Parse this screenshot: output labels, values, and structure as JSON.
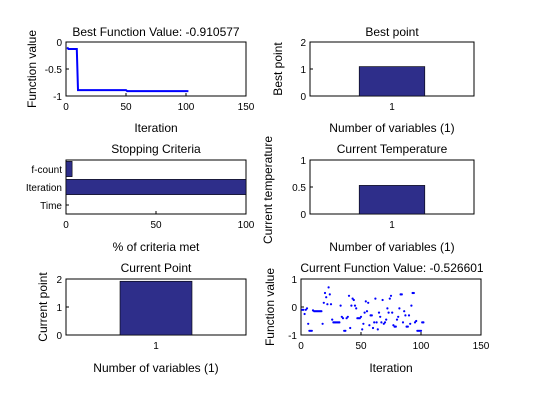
{
  "figure": {
    "background": "#ffffff",
    "bar_color": "#2e2e8a",
    "line_color": "#0000ff"
  },
  "chart_data": [
    {
      "id": "best-function-value",
      "type": "line",
      "title": "Best Function Value: -0.910577",
      "xlabel": "Iteration",
      "ylabel": "Function value",
      "xlim": [
        0,
        150
      ],
      "ylim": [
        -1,
        0
      ],
      "xticks": [
        "0",
        "50",
        "100",
        "150"
      ],
      "yticks": [
        "-1",
        "-0.5",
        "0"
      ],
      "series": [
        {
          "x": [
            1,
            2,
            3,
            4,
            5,
            6,
            7,
            8,
            9,
            10,
            11,
            12,
            13,
            14,
            15,
            16,
            17,
            18,
            19,
            20,
            21,
            22,
            23,
            24,
            25,
            26,
            27,
            28,
            29,
            30,
            31,
            32,
            33,
            34,
            35,
            36,
            37,
            38,
            39,
            40,
            41,
            42,
            43,
            44,
            45,
            46,
            47,
            48,
            49,
            50,
            51,
            52,
            53,
            54,
            55,
            56,
            57,
            58,
            59,
            60,
            61,
            62,
            63,
            64,
            65,
            66,
            67,
            68,
            69,
            70,
            71,
            72,
            73,
            74,
            75,
            76,
            77,
            78,
            79,
            80,
            81,
            82,
            83,
            84,
            85,
            86,
            87,
            88,
            89,
            90,
            91,
            92,
            93,
            94,
            95,
            96,
            97,
            98,
            99,
            100,
            101,
            102
          ],
          "y": [
            -0.1,
            -0.13,
            -0.13,
            -0.13,
            -0.13,
            -0.13,
            -0.13,
            -0.13,
            -0.13,
            -0.89,
            -0.89,
            -0.89,
            -0.89,
            -0.89,
            -0.89,
            -0.89,
            -0.89,
            -0.89,
            -0.89,
            -0.89,
            -0.89,
            -0.89,
            -0.89,
            -0.89,
            -0.89,
            -0.89,
            -0.89,
            -0.89,
            -0.89,
            -0.89,
            -0.89,
            -0.89,
            -0.89,
            -0.89,
            -0.89,
            -0.89,
            -0.89,
            -0.89,
            -0.89,
            -0.89,
            -0.89,
            -0.89,
            -0.89,
            -0.89,
            -0.89,
            -0.89,
            -0.89,
            -0.89,
            -0.89,
            -0.89,
            -0.91,
            -0.91,
            -0.91,
            -0.91,
            -0.91,
            -0.91,
            -0.91,
            -0.91,
            -0.91,
            -0.91,
            -0.91,
            -0.91,
            -0.91,
            -0.91,
            -0.91,
            -0.91,
            -0.91,
            -0.91,
            -0.91,
            -0.91,
            -0.91,
            -0.91,
            -0.91,
            -0.91,
            -0.91,
            -0.91,
            -0.91,
            -0.91,
            -0.91,
            -0.91,
            -0.91,
            -0.91,
            -0.91,
            -0.91,
            -0.91,
            -0.91,
            -0.91,
            -0.91,
            -0.91,
            -0.91,
            -0.91,
            -0.91,
            -0.91,
            -0.91,
            -0.91,
            -0.91,
            -0.91,
            -0.91,
            -0.91,
            -0.91,
            -0.91,
            -0.91
          ]
        }
      ]
    },
    {
      "id": "best-point",
      "type": "bar",
      "title": "Best point",
      "xlabel": "Number of variables (1)",
      "ylabel": "Best point",
      "xlim": [
        0,
        2
      ],
      "ylim": [
        0,
        2
      ],
      "categories": [
        "1"
      ],
      "xticks": [
        "1"
      ],
      "yticks": [
        "0",
        "1",
        "2"
      ],
      "values": [
        1.09
      ]
    },
    {
      "id": "stopping-criteria",
      "type": "bar",
      "orientation": "horizontal",
      "title": "Stopping Criteria",
      "xlabel": "% of criteria met",
      "ylabel": "",
      "xlim": [
        0,
        100
      ],
      "categories": [
        "f-count",
        "Iteration",
        "Time"
      ],
      "xticks": [
        "0",
        "50",
        "100"
      ],
      "values": [
        3.4,
        100,
        0
      ]
    },
    {
      "id": "current-temperature",
      "type": "bar",
      "title": "Current Temperature",
      "xlabel": "Number of variables (1)",
      "ylabel": "Current temperature",
      "xlim": [
        0,
        2
      ],
      "ylim": [
        0,
        1
      ],
      "categories": [
        "1"
      ],
      "xticks": [
        "1"
      ],
      "yticks": [
        "0",
        "0.5",
        "1"
      ],
      "values": [
        0.53
      ]
    },
    {
      "id": "current-point",
      "type": "bar",
      "title": "Current Point",
      "xlabel": "Number of variables (1)",
      "ylabel": "Current point",
      "xlim": [
        0,
        2
      ],
      "ylim": [
        0,
        2
      ],
      "categories": [
        "1"
      ],
      "xticks": [
        "1"
      ],
      "yticks": [
        "0",
        "1",
        "2"
      ],
      "values": [
        1.92
      ]
    },
    {
      "id": "current-function-value",
      "type": "scatter",
      "title": "Current Function Value: -0.526601",
      "xlabel": "Iteration",
      "ylabel": "Function value",
      "xlim": [
        0,
        150
      ],
      "ylim": [
        -1,
        1
      ],
      "xticks": [
        "0",
        "50",
        "100",
        "150"
      ],
      "yticks": [
        "-1",
        "0",
        "1"
      ],
      "series": [
        {
          "x": [
            1,
            2,
            3,
            4,
            5,
            6,
            7,
            8,
            9,
            10,
            11,
            12,
            13,
            14,
            15,
            16,
            17,
            18,
            19,
            20,
            21,
            22,
            23,
            24,
            25,
            26,
            27,
            28,
            29,
            30,
            31,
            32,
            33,
            34,
            35,
            36,
            37,
            38,
            39,
            40,
            41,
            42,
            43,
            44,
            45,
            46,
            47,
            48,
            49,
            50,
            51,
            52,
            53,
            54,
            55,
            56,
            57,
            58,
            59,
            60,
            61,
            62,
            63,
            64,
            65,
            66,
            67,
            68,
            69,
            70,
            71,
            72,
            73,
            74,
            75,
            76,
            77,
            78,
            79,
            80,
            81,
            82,
            83,
            84,
            85,
            86,
            87,
            88,
            89,
            90,
            91,
            92,
            93,
            94,
            95,
            96,
            97,
            98,
            99,
            100,
            101,
            102
          ],
          "y": [
            -0.1,
            -0.1,
            -0.25,
            -0.1,
            -0.05,
            -0.6,
            -0.85,
            -0.85,
            -0.85,
            -0.12,
            -0.15,
            -0.15,
            -0.15,
            -0.15,
            -0.15,
            -0.15,
            -0.15,
            -0.6,
            0.15,
            0.5,
            0.35,
            0.1,
            0.7,
            0.45,
            0.1,
            -0.45,
            -0.55,
            -0.55,
            -0.55,
            -0.55,
            -0.55,
            -0.55,
            0.05,
            -0.35,
            -0.4,
            -0.85,
            -0.85,
            -0.4,
            -0.35,
            0.4,
            -0.75,
            0.05,
            0.3,
            0.25,
            0.05,
            -0.05,
            -0.4,
            -0.4,
            -0.4,
            -0.35,
            -0.8,
            -0.6,
            -0.2,
            0.2,
            -0.15,
            0.15,
            -0.65,
            -0.3,
            -0.3,
            -0.75,
            -0.55,
            0.3,
            -0.55,
            -0.8,
            -0.2,
            -0.35,
            -0.55,
            0.25,
            -0.6,
            -0.55,
            -0.45,
            -0.05,
            -0.2,
            0.3,
            0.4,
            -0.2,
            -0.65,
            -0.7,
            -0.7,
            -0.45,
            -0.35,
            -0.05,
            0.45,
            0.45,
            -0.55,
            -0.15,
            -0.3,
            -0.7,
            -0.7,
            -0.3,
            -0.6,
            0.05,
            0.5,
            0.5,
            -0.55,
            -0.5,
            -0.85,
            -0.85,
            -0.85,
            -0.85,
            -0.55,
            -0.55
          ]
        }
      ]
    }
  ]
}
